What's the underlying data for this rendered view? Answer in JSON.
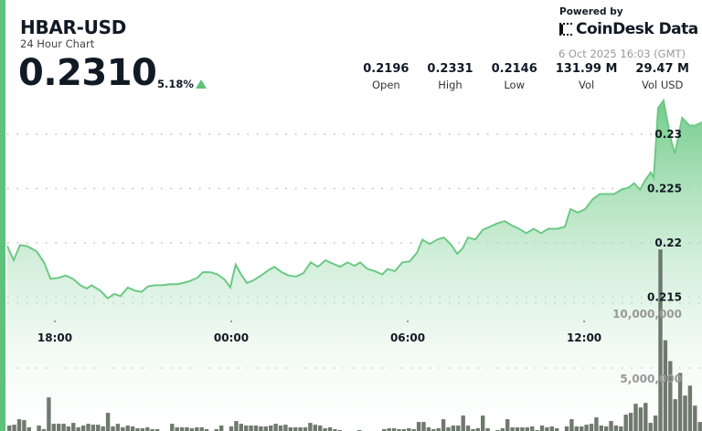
{
  "header": {
    "title": "HBAR-USD",
    "subtitle": "24 Hour Chart",
    "price": "0.2310",
    "change": "5.18%",
    "change_direction": "up",
    "powered_by": "Powered by",
    "brand": "CoinDesk Data",
    "timestamp": "6 Oct 2025 16:03 (GMT)"
  },
  "stats": [
    {
      "value": "0.2196",
      "label": "Open"
    },
    {
      "value": "0.2331",
      "label": "High"
    },
    {
      "value": "0.2146",
      "label": "Low"
    },
    {
      "value": "131.99 M",
      "label": "Vol"
    },
    {
      "value": "29.47 M",
      "label": "Vol USD"
    }
  ],
  "colors": {
    "accent": "#5fc27a",
    "line": "#6cc985",
    "volume_bar": "#5f6a5e",
    "text": "#111a24"
  },
  "chart_data": {
    "type": "area",
    "grid": true,
    "x_ticks": [
      "18:00",
      "00:00",
      "06:00",
      "12:00"
    ],
    "y_ticks": [
      0.215,
      0.22,
      0.225,
      0.23
    ],
    "y_tick_labels": [
      "0.215",
      "0.22",
      "0.225",
      "0.23"
    ],
    "volume_ticks": [
      5000000,
      10000000
    ],
    "volume_tick_labels": [
      "5,000,000",
      "10,000,000"
    ],
    "price_series": [
      [
        "16:23",
        0.2197
      ],
      [
        "16:36",
        0.2184
      ],
      [
        "16:49",
        0.2198
      ],
      [
        "17:04",
        0.2197
      ],
      [
        "17:23",
        0.2192
      ],
      [
        "17:38",
        0.2182
      ],
      [
        "17:51",
        0.2167
      ],
      [
        "18:09",
        0.2168
      ],
      [
        "18:22",
        0.217
      ],
      [
        "18:37",
        0.2167
      ],
      [
        "18:52",
        0.2161
      ],
      [
        "19:05",
        0.2158
      ],
      [
        "19:15",
        0.2161
      ],
      [
        "19:33",
        0.2156
      ],
      [
        "19:48",
        0.2149
      ],
      [
        "20:01",
        0.2153
      ],
      [
        "20:14",
        0.2151
      ],
      [
        "20:29",
        0.2159
      ],
      [
        "20:44",
        0.2156
      ],
      [
        "20:57",
        0.2155
      ],
      [
        "21:10",
        0.216
      ],
      [
        "21:25",
        0.2161
      ],
      [
        "21:40",
        0.2161
      ],
      [
        "21:55",
        0.2162
      ],
      [
        "22:10",
        0.2162
      ],
      [
        "22:21",
        0.2163
      ],
      [
        "22:36",
        0.2165
      ],
      [
        "22:51",
        0.2168
      ],
      [
        "23:02",
        0.2173
      ],
      [
        "23:17",
        0.2173
      ],
      [
        "23:32",
        0.2171
      ],
      [
        "23:47",
        0.2166
      ],
      [
        "23:58",
        0.2159
      ],
      [
        "00:09",
        0.218
      ],
      [
        "00:20",
        0.2171
      ],
      [
        "00:32",
        0.2163
      ],
      [
        "00:47",
        0.2166
      ],
      [
        "01:01",
        0.217
      ],
      [
        "01:16",
        0.2175
      ],
      [
        "01:28",
        0.2178
      ],
      [
        "01:43",
        0.2173
      ],
      [
        "01:57",
        0.217
      ],
      [
        "02:12",
        0.2169
      ],
      [
        "02:27",
        0.2172
      ],
      [
        "02:42",
        0.2182
      ],
      [
        "02:57",
        0.2178
      ],
      [
        "03:12",
        0.2184
      ],
      [
        "03:27",
        0.2181
      ],
      [
        "03:42",
        0.2178
      ],
      [
        "03:57",
        0.2182
      ],
      [
        "04:12",
        0.2179
      ],
      [
        "04:23",
        0.2182
      ],
      [
        "04:38",
        0.2176
      ],
      [
        "04:53",
        0.2174
      ],
      [
        "05:08",
        0.2171
      ],
      [
        "05:19",
        0.2176
      ],
      [
        "05:34",
        0.2174
      ],
      [
        "05:49",
        0.2182
      ],
      [
        "06:04",
        0.2183
      ],
      [
        "06:19",
        0.2191
      ],
      [
        "06:30",
        0.2203
      ],
      [
        "06:45",
        0.2199
      ],
      [
        "07:00",
        0.2203
      ],
      [
        "07:14",
        0.2205
      ],
      [
        "07:29",
        0.2198
      ],
      [
        "07:41",
        0.219
      ],
      [
        "07:52",
        0.2195
      ],
      [
        "08:03",
        0.2205
      ],
      [
        "08:18",
        0.2203
      ],
      [
        "08:33",
        0.2212
      ],
      [
        "08:48",
        0.2215
      ],
      [
        "09:03",
        0.2218
      ],
      [
        "09:18",
        0.222
      ],
      [
        "09:33",
        0.2216
      ],
      [
        "09:47",
        0.2213
      ],
      [
        "10:02",
        0.2209
      ],
      [
        "10:17",
        0.2213
      ],
      [
        "10:32",
        0.2209
      ],
      [
        "10:47",
        0.2213
      ],
      [
        "11:06",
        0.2213
      ],
      [
        "11:21",
        0.2215
      ],
      [
        "11:32",
        0.2231
      ],
      [
        "11:47",
        0.2228
      ],
      [
        "12:02",
        0.2231
      ],
      [
        "12:17",
        0.224
      ],
      [
        "12:32",
        0.2245
      ],
      [
        "12:46",
        0.2245
      ],
      [
        "13:01",
        0.2245
      ],
      [
        "13:16",
        0.2249
      ],
      [
        "13:31",
        0.2251
      ],
      [
        "13:42",
        0.2255
      ],
      [
        "13:54",
        0.2249
      ],
      [
        "14:05",
        0.2258
      ],
      [
        "14:16",
        0.2265
      ],
      [
        "14:22",
        0.226
      ],
      [
        "14:31",
        0.2324
      ],
      [
        "14:42",
        0.2331
      ],
      [
        "14:57",
        0.2295
      ],
      [
        "15:05",
        0.2282
      ],
      [
        "15:20",
        0.2315
      ],
      [
        "15:35",
        0.2308
      ],
      [
        "15:46",
        0.2308
      ],
      [
        "16:01",
        0.2311
      ]
    ],
    "volumes": [
      560000,
      630000,
      1050000,
      980000,
      420000,
      140000,
      560000,
      280000,
      2730000,
      700000,
      700000,
      700000,
      490000,
      770000,
      420000,
      560000,
      700000,
      630000,
      630000,
      490000,
      1540000,
      490000,
      700000,
      420000,
      560000,
      490000,
      350000,
      350000,
      420000,
      280000,
      280000,
      0,
      70000,
      700000,
      420000,
      420000,
      420000,
      350000,
      420000,
      420000,
      280000,
      140000,
      280000,
      560000,
      140000,
      490000,
      910000,
      700000,
      560000,
      560000,
      560000,
      490000,
      490000,
      560000,
      700000,
      560000,
      630000,
      420000,
      420000,
      420000,
      420000,
      770000,
      630000,
      560000,
      350000,
      420000,
      280000,
      210000,
      140000,
      140000,
      140000,
      210000,
      140000,
      70000,
      70000,
      140000,
      280000,
      350000,
      350000,
      280000,
      280000,
      350000,
      280000,
      840000,
      840000,
      420000,
      280000,
      350000,
      1050000,
      420000,
      560000,
      560000,
      1330000,
      560000,
      280000,
      350000,
      1330000,
      350000,
      140000,
      210000,
      350000,
      1050000,
      420000,
      420000,
      420000,
      420000,
      490000,
      210000,
      560000,
      420000,
      490000,
      350000,
      140000,
      490000,
      1050000,
      490000,
      490000,
      630000,
      700000,
      1190000,
      560000,
      490000,
      910000,
      560000,
      490000,
      1400000,
      1540000,
      2240000,
      1960000,
      2310000,
      770000,
      1330000,
      14140000,
      7140000,
      5530000,
      2590000,
      4620000,
      2870000,
      3640000,
      2100000,
      840000,
      350000
    ]
  }
}
